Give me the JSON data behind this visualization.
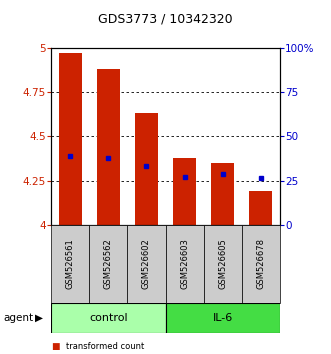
{
  "title": "GDS3773 / 10342320",
  "samples": [
    "GSM526561",
    "GSM526562",
    "GSM526602",
    "GSM526603",
    "GSM526605",
    "GSM526678"
  ],
  "groups": [
    "control",
    "control",
    "control",
    "IL-6",
    "IL-6",
    "IL-6"
  ],
  "red_tops": [
    4.97,
    4.88,
    4.63,
    4.38,
    4.35,
    4.19
  ],
  "blue_vals": [
    4.39,
    4.38,
    4.33,
    4.27,
    4.285,
    4.265
  ],
  "ymin": 4.0,
  "ymax": 5.0,
  "yticks": [
    4.0,
    4.25,
    4.5,
    4.75,
    5.0
  ],
  "ytick_labels": [
    "4",
    "4.25",
    "4.5",
    "4.75",
    "5"
  ],
  "right_yticks_pct": [
    0,
    25,
    50,
    75,
    100
  ],
  "right_ytick_labels": [
    "0",
    "25",
    "50",
    "75",
    "100%"
  ],
  "bar_color": "#cc2200",
  "blue_color": "#0000cc",
  "control_color": "#aaffaa",
  "il6_color": "#44dd44",
  "sample_bg_color": "#cccccc",
  "bar_width": 0.6,
  "base": 4.0,
  "figw": 3.31,
  "figh": 3.54,
  "dpi": 100
}
